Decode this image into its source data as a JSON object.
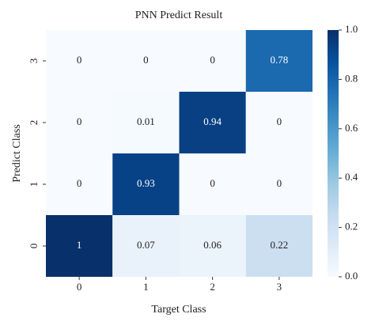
{
  "chart_data": {
    "type": "heatmap",
    "title": "PNN Predict Result",
    "xlabel": "Target Class",
    "ylabel": "Predict Class",
    "x_categories": [
      "0",
      "1",
      "2",
      "3"
    ],
    "y_categories": [
      "3",
      "2",
      "1",
      "0"
    ],
    "values": [
      [
        0,
        0,
        0,
        0.78
      ],
      [
        0,
        0.01,
        0.94,
        0
      ],
      [
        0,
        0.93,
        0,
        0
      ],
      [
        1,
        0.07,
        0.06,
        0.22
      ]
    ],
    "colormap": "Blues",
    "clim": [
      0,
      1
    ],
    "cticks": [
      {
        "value": 0,
        "label": "0.0"
      },
      0.2,
      0.4,
      0.6,
      0.8,
      {
        "value": 1,
        "label": "1.0"
      }
    ]
  }
}
